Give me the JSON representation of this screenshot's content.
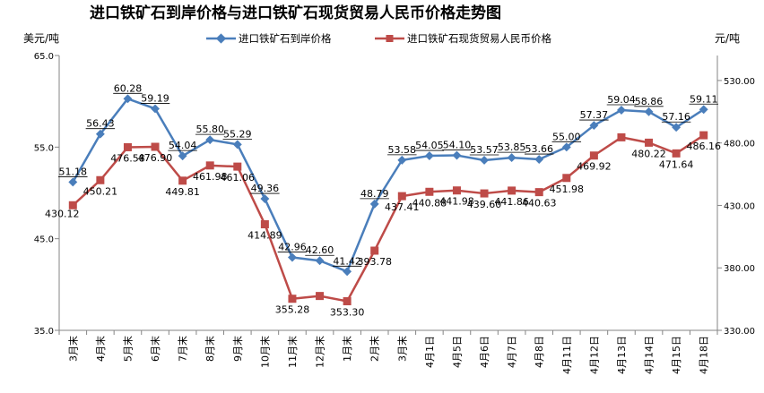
{
  "chart_data": {
    "type": "line",
    "title": "进口铁矿石到岸价格与进口铁矿石现货贸易人民币价格走势图",
    "left_axis_unit": "美元/吨",
    "right_axis_unit": "元/吨",
    "categories": [
      "3月末",
      "4月末",
      "5月末",
      "6月末",
      "7月末",
      "8月末",
      "9月末",
      "10月末",
      "11月末",
      "12月末",
      "1月末",
      "2月末",
      "3月末",
      "4月1日",
      "4月5日",
      "4月6日",
      "4月7日",
      "4月8日",
      "4月11日",
      "4月12日",
      "4月13日",
      "4月14日",
      "4月15日",
      "4月18日"
    ],
    "y_left": {
      "min": 35,
      "max": 65,
      "ticks": [
        "35.0",
        "45.0",
        "55.0",
        "65.0"
      ]
    },
    "y_right": {
      "min": 330,
      "max": 550,
      "ticks": [
        "330.00",
        "380.00",
        "430.00",
        "480.00",
        "530.00"
      ]
    },
    "legend_position": "top",
    "grid": false,
    "series": [
      {
        "name": "进口铁矿石到岸价格",
        "axis": "left",
        "color": "#4a7ebb",
        "marker": "diamond",
        "values": [
          51.18,
          56.43,
          60.28,
          59.19,
          54.04,
          55.8,
          55.29,
          49.36,
          42.96,
          42.6,
          41.42,
          48.79,
          53.58,
          54.05,
          54.1,
          53.57,
          53.85,
          53.66,
          55.0,
          57.37,
          59.04,
          58.86,
          57.16,
          59.11
        ],
        "labels": [
          "51.18",
          "56.43",
          "60.28",
          "59.19",
          "54.04",
          "55.80",
          "55.29",
          "49.36",
          "42.96",
          "42.60",
          "41.42",
          "48.79",
          "53.58",
          "54.05",
          "54.10",
          "53.57",
          "53.85",
          "53.66",
          "55.00",
          "57.37",
          "59.04",
          "58.86",
          "57.16",
          "59.11"
        ]
      },
      {
        "name": "进口铁矿石现货贸易人民币价格",
        "axis": "right",
        "color": "#be4b48",
        "marker": "square",
        "values": [
          430.12,
          450.21,
          476.58,
          476.9,
          449.81,
          461.98,
          461.06,
          414.89,
          355.28,
          357.5,
          353.3,
          393.78,
          437.41,
          440.88,
          441.98,
          439.6,
          441.86,
          440.63,
          451.98,
          469.92,
          484.5,
          480.22,
          471.64,
          486.16
        ],
        "labels": [
          "430.12",
          "450.21",
          "476.58",
          "476.90",
          "449.81",
          "461.98",
          "461.06",
          "414.89",
          "355.28",
          "",
          "353.30",
          "393.78",
          "437.41",
          "440.88",
          "441.98",
          "439.60",
          "441.86",
          "440.63",
          "451.98",
          "469.92",
          "",
          "480.22",
          "471.64",
          "486.16"
        ]
      }
    ]
  }
}
